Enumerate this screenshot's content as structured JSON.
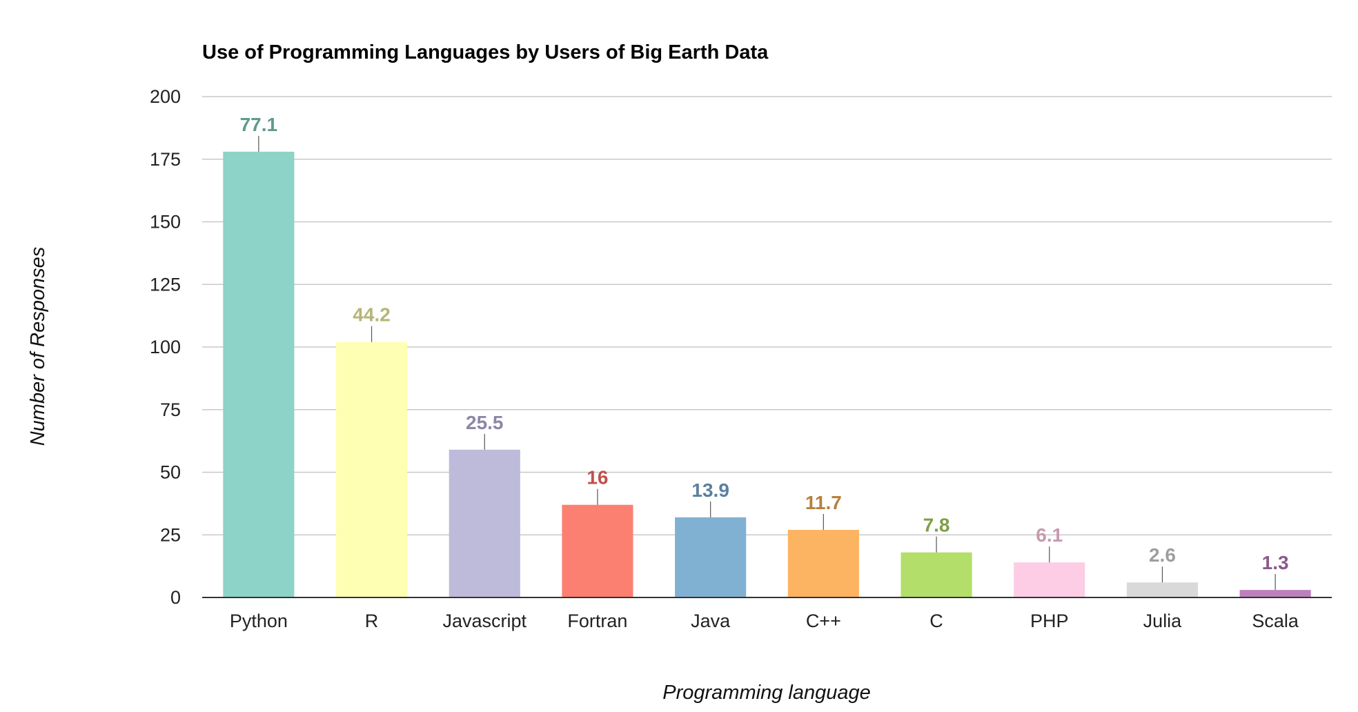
{
  "chart_data": {
    "type": "bar",
    "title": "Use of Programming Languages by Users of Big Earth Data",
    "xlabel": "Programming language",
    "ylabel": "Number of Responses",
    "ylim": [
      0,
      200
    ],
    "yticks": [
      "0",
      "25",
      "50",
      "75",
      "100",
      "125",
      "150",
      "175",
      "200"
    ],
    "grid": true,
    "categories": [
      "Python",
      "R",
      "Javascript",
      "Fortran",
      "Java",
      "C++",
      "C",
      "PHP",
      "Julia",
      "Scala"
    ],
    "values": [
      178,
      102,
      59,
      37,
      32,
      27,
      18,
      14,
      6,
      3
    ],
    "data_labels": [
      "77.1",
      "44.2",
      "25.5",
      "16",
      "13.9",
      "11.7",
      "7.8",
      "6.1",
      "2.6",
      "1.3"
    ],
    "colors": [
      "#8dd3c7",
      "#ffffb3",
      "#bebada",
      "#fb8072",
      "#80b1d3",
      "#fdb462",
      "#b3de69",
      "#fccde5",
      "#d9d9d9",
      "#bc80bd"
    ],
    "label_colors": [
      "#5e9a8f",
      "#b5b575",
      "#8a87a8",
      "#c0504d",
      "#5c7fa0",
      "#b5803e",
      "#7e9f46",
      "#c79aae",
      "#9e9e9e",
      "#8a5a8b"
    ]
  }
}
